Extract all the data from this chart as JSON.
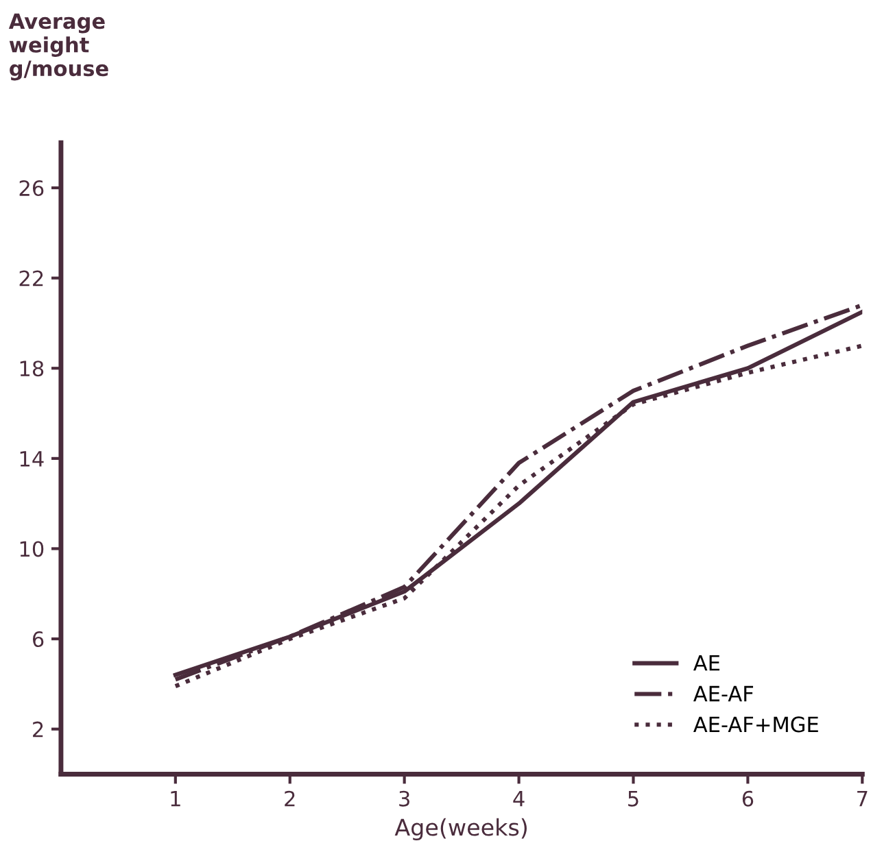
{
  "chart_data": {
    "type": "line",
    "ylabel": "Average\nweight\ng/mouse",
    "xlabel": "Age(weeks)",
    "x": [
      1,
      2,
      3,
      4,
      5,
      6,
      7
    ],
    "series": [
      {
        "name": "AE",
        "color": "#4a2c3c",
        "line_style": "solid",
        "values": [
          4.4,
          6.1,
          8.1,
          12.0,
          16.5,
          18.0,
          20.5
        ]
      },
      {
        "name": "AE-AF",
        "color": "#4a2c3c",
        "line_style": "dashdot",
        "values": [
          4.2,
          6.1,
          8.3,
          13.8,
          17.0,
          19.0,
          20.8
        ]
      },
      {
        "name": "AE-AF+MGE",
        "color": "#4a2c3c",
        "line_style": "dotted",
        "values": [
          3.9,
          6.0,
          7.8,
          12.8,
          16.4,
          17.8,
          19.0
        ]
      }
    ],
    "xlim": [
      0,
      7
    ],
    "ylim": [
      0,
      28
    ],
    "xticks": [
      1,
      2,
      3,
      4,
      5,
      6,
      7
    ],
    "yticks": [
      2,
      6,
      10,
      14,
      18,
      22,
      26
    ],
    "grid": false,
    "legend": "bottom right",
    "marker": "none"
  }
}
